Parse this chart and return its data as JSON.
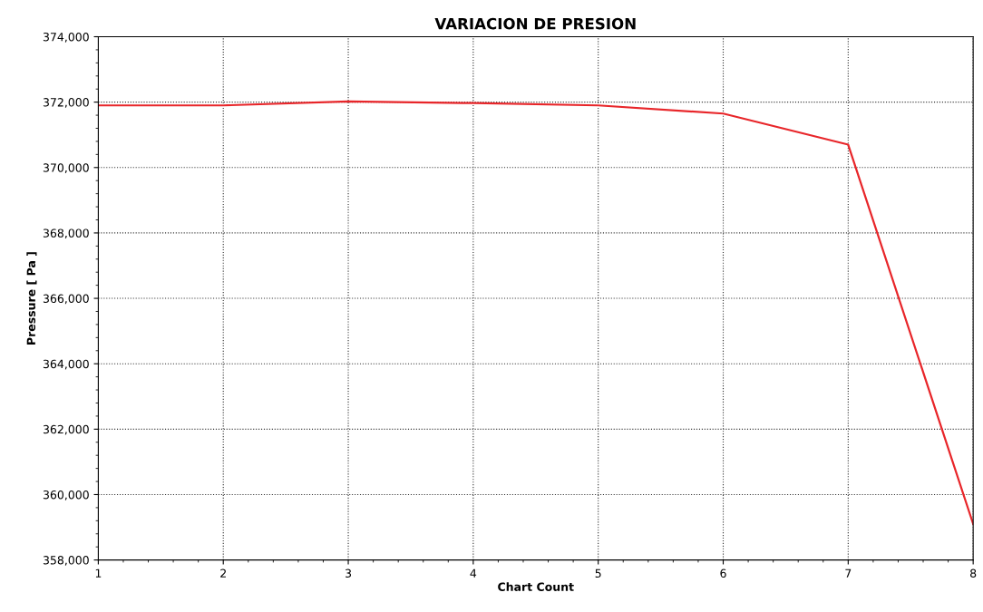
{
  "chart_data": {
    "type": "line",
    "title": "VARIACION DE PRESION",
    "xlabel": "Chart Count",
    "ylabel": "Pressure [ Pa ]",
    "x": [
      1,
      2,
      3,
      4,
      5,
      6,
      7,
      8
    ],
    "series": [
      {
        "color": "#e8262a",
        "values": [
          371900,
          371900,
          372020,
          371970,
          371900,
          371650,
          370700,
          359100
        ]
      }
    ],
    "xlim": [
      1,
      8
    ],
    "xticks": [
      1,
      2,
      3,
      4,
      5,
      6,
      7,
      8
    ],
    "ylim": [
      358000,
      374000
    ],
    "yticks": [
      {
        "value": 358000,
        "label": "358,000"
      },
      {
        "value": 360000,
        "label": "360,000"
      },
      {
        "value": 362000,
        "label": "362,000"
      },
      {
        "value": 364000,
        "label": "364,000"
      },
      {
        "value": 366000,
        "label": "366,000"
      },
      {
        "value": 368000,
        "label": "368,000"
      },
      {
        "value": 370000,
        "label": "370,000"
      },
      {
        "value": 372000,
        "label": "372,000"
      },
      {
        "value": 374000,
        "label": "374,000"
      }
    ],
    "grid": true,
    "line_style": "solid",
    "marker": "none"
  }
}
